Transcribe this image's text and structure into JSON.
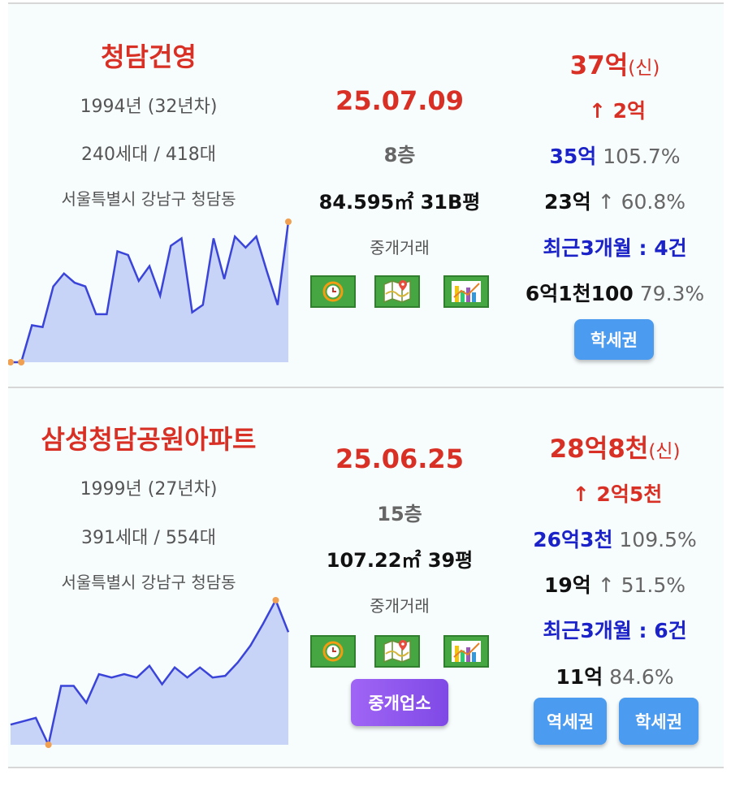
{
  "listings": [
    {
      "name": "청담건영",
      "year": "1994년 (32년차)",
      "households": "240세대 / 418대",
      "address": "서울특별시 강남구 청담동",
      "date": "25.07.09",
      "floor": "8층",
      "area": "84.595㎡ 31B평",
      "deal_type": "중개거래",
      "price": "37억",
      "price_tag": "(신)",
      "change": "↑ 2억",
      "ref_price": "35억",
      "ref_pct": "105.7%",
      "low_price": "23억",
      "low_arrow": "↑",
      "low_pct": "60.8%",
      "recent": "최근3개월 : 4건",
      "gap": "6억1천100",
      "gap_pct": "79.3%",
      "buttons": [
        "학세권"
      ],
      "icons": [
        "clock-icon",
        "map-icon",
        "bar-chart-icon"
      ],
      "trend": [
        0,
        0,
        20,
        19,
        41,
        48,
        43,
        41,
        26,
        26,
        60,
        58,
        44,
        52,
        36,
        63,
        67,
        27,
        31,
        67,
        45,
        68,
        62,
        68,
        49,
        31,
        76
      ]
    },
    {
      "name": "삼성청담공원아파트",
      "year": "1999년 (27년차)",
      "households": "391세대 / 554대",
      "address": "서울특별시 강남구 청담동",
      "date": "25.06.25",
      "floor": "15층",
      "area": "107.22㎡ 39평",
      "deal_type": "중개거래",
      "price": "28억8천",
      "price_tag": "(신)",
      "change": "↑ 2억5천",
      "ref_price": "26억3천",
      "ref_pct": "109.5%",
      "low_price": "19억",
      "low_arrow": "↑",
      "low_pct": "51.5%",
      "recent": "최근3개월 : 6건",
      "gap": "11억",
      "gap_pct": "84.6%",
      "buttons": [
        "역세권",
        "학세권"
      ],
      "extra_button": "중개업소",
      "icons": [
        "clock-icon",
        "map-icon",
        "bar-chart-icon"
      ],
      "trend": [
        12,
        14,
        16,
        0,
        35,
        35,
        25,
        42,
        40,
        42,
        40,
        47,
        36,
        46,
        40,
        46,
        40,
        41,
        49,
        59,
        72,
        86,
        67
      ]
    }
  ]
}
